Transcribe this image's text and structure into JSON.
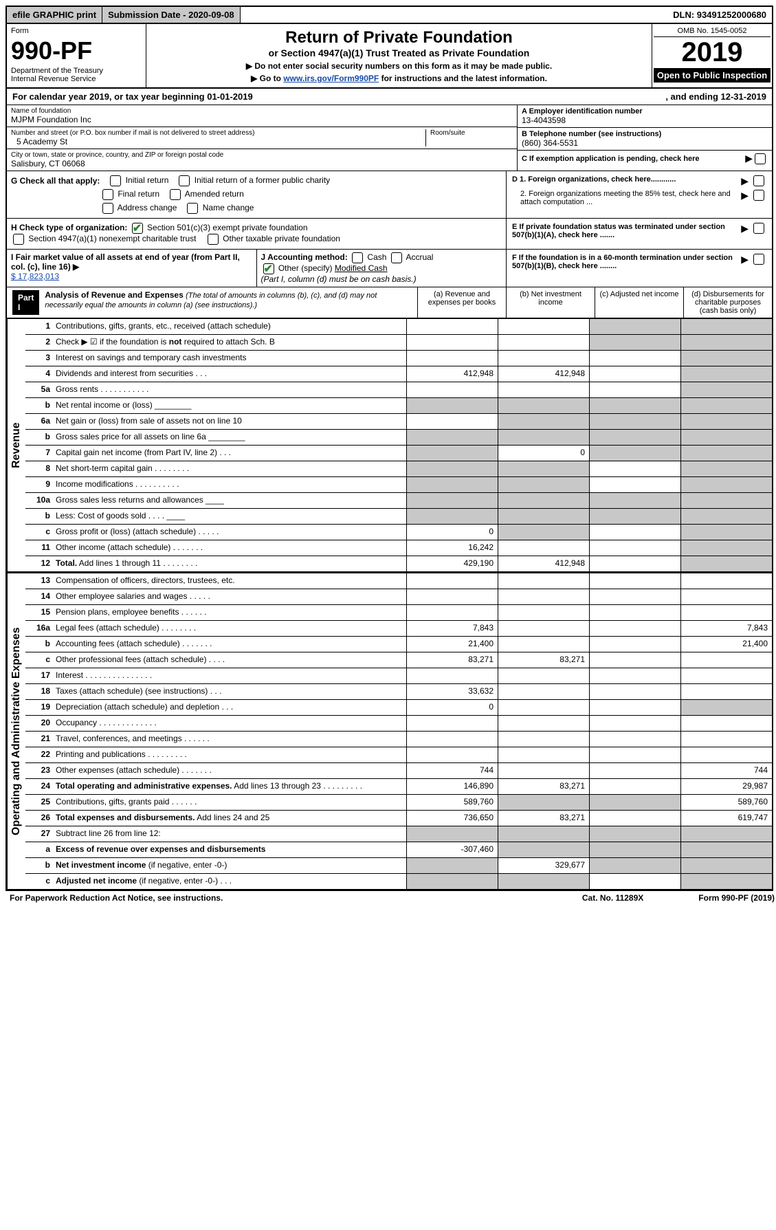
{
  "topbar": {
    "efile": "efile GRAPHIC print",
    "subdate_label": "Submission Date - 2020-09-08",
    "dln": "DLN: 93491252000680"
  },
  "header": {
    "form_word": "Form",
    "form_num": "990-PF",
    "dept": "Department of the Treasury",
    "irs": "Internal Revenue Service",
    "title1": "Return of Private Foundation",
    "title2": "or Section 4947(a)(1) Trust Treated as Private Foundation",
    "instr1": "▶ Do not enter social security numbers on this form as it may be made public.",
    "instr2_pre": "▶ Go to ",
    "instr2_link": "www.irs.gov/Form990PF",
    "instr2_post": " for instructions and the latest information.",
    "omb": "OMB No. 1545-0052",
    "year": "2019",
    "open": "Open to Public Inspection"
  },
  "calyear": {
    "left": "For calendar year 2019, or tax year beginning 01-01-2019",
    "right": ", and ending 12-31-2019"
  },
  "entity": {
    "name_label": "Name of foundation",
    "name": "MJPM Foundation Inc",
    "addr_label": "Number and street (or P.O. box number if mail is not delivered to street address)",
    "addr": "5 Academy St",
    "room_label": "Room/suite",
    "city_label": "City or town, state or province, country, and ZIP or foreign postal code",
    "city": "Salisbury, CT  06068",
    "a_label": "A Employer identification number",
    "ein": "13-4043598",
    "b_label": "B Telephone number (see instructions)",
    "phone": "(860) 364-5531",
    "c_label": "C If exemption application is pending, check here"
  },
  "boxes": {
    "g_label": "G Check all that apply:",
    "g1": "Initial return",
    "g2": "Initial return of a former public charity",
    "g3": "Final return",
    "g4": "Amended return",
    "g5": "Address change",
    "g6": "Name change",
    "h_label": "H Check type of organization:",
    "h1": "Section 501(c)(3) exempt private foundation",
    "h2": "Section 4947(a)(1) nonexempt charitable trust",
    "h3": "Other taxable private foundation",
    "d1": "D 1. Foreign organizations, check here............",
    "d2": "2. Foreign organizations meeting the 85% test, check here and attach computation ...",
    "e": "E  If private foundation status was terminated under section 507(b)(1)(A), check here .......",
    "f": "F  If the foundation is in a 60-month termination under section 507(b)(1)(B), check here ........",
    "i_label": "I Fair market value of all assets at end of year (from Part II, col. (c), line 16) ▶",
    "i_val": "$  17,823,013",
    "j_label": "J Accounting method:",
    "j_cash": "Cash",
    "j_accrual": "Accrual",
    "j_other": "Other (specify)",
    "j_other_val": "Modified Cash",
    "j_note": "(Part I, column (d) must be on cash basis.)"
  },
  "part1": {
    "hdr": "Part I",
    "title": "Analysis of Revenue and Expenses",
    "note": "(The total of amounts in columns (b), (c), and (d) may not necessarily equal the amounts in column (a) (see instructions).)",
    "col_a": "(a)    Revenue and expenses per books",
    "col_b": "(b)   Net investment income",
    "col_c": "(c)   Adjusted net income",
    "col_d": "(d)   Disbursements for charitable purposes (cash basis only)"
  },
  "side_rev": "Revenue",
  "side_exp": "Operating and Administrative Expenses",
  "rows": [
    {
      "n": "1",
      "label": "Contributions, gifts, grants, etc., received (attach schedule)",
      "a": "",
      "b": "",
      "c": "s",
      "d": "s"
    },
    {
      "n": "2",
      "label": "Check ▶ ☑ if the foundation is <b>not</b> required to attach Sch. B",
      "a": "",
      "b": "",
      "c": "s",
      "d": "s"
    },
    {
      "n": "3",
      "label": "Interest on savings and temporary cash investments",
      "a": "",
      "b": "",
      "c": "",
      "d": "s"
    },
    {
      "n": "4",
      "label": "Dividends and interest from securities   .   .   .",
      "a": "412,948",
      "b": "412,948",
      "c": "",
      "d": "s"
    },
    {
      "n": "5a",
      "label": "Gross rents    .   .   .   .   .   .   .   .   .   .   .",
      "a": "",
      "b": "",
      "c": "",
      "d": "s"
    },
    {
      "n": "b",
      "label": "Net rental income or (loss)  ________",
      "a": "s",
      "b": "s",
      "c": "s",
      "d": "s"
    },
    {
      "n": "6a",
      "label": "Net gain or (loss) from sale of assets not on line 10",
      "a": "",
      "b": "s",
      "c": "s",
      "d": "s"
    },
    {
      "n": "b",
      "label": "Gross sales price for all assets on line 6a ________",
      "a": "s",
      "b": "s",
      "c": "s",
      "d": "s"
    },
    {
      "n": "7",
      "label": "Capital gain net income (from Part IV, line 2)   .   .   .",
      "a": "s",
      "b": "0",
      "c": "s",
      "d": "s"
    },
    {
      "n": "8",
      "label": "Net short-term capital gain  .   .   .   .   .   .   .   .",
      "a": "s",
      "b": "s",
      "c": "",
      "d": "s"
    },
    {
      "n": "9",
      "label": "Income modifications   .   .   .   .   .   .   .   .   .   .",
      "a": "s",
      "b": "s",
      "c": "",
      "d": "s"
    },
    {
      "n": "10a",
      "label": "Gross sales less returns and allowances  ____",
      "a": "s",
      "b": "s",
      "c": "s",
      "d": "s"
    },
    {
      "n": "b",
      "label": "Less: Cost of goods sold    .   .   .   .   ____",
      "a": "s",
      "b": "s",
      "c": "s",
      "d": "s"
    },
    {
      "n": "c",
      "label": "Gross profit or (loss) (attach schedule)   .   .   .   .   .",
      "a": "0",
      "b": "s",
      "c": "",
      "d": "s"
    },
    {
      "n": "11",
      "label": "Other income (attach schedule)   .   .   .   .   .   .   .",
      "a": "16,242",
      "b": "",
      "c": "",
      "d": "s"
    },
    {
      "n": "12",
      "label": "<b>Total.</b> Add lines 1 through 11   .   .   .   .   .   .   .   .",
      "a": "429,190",
      "b": "412,948",
      "c": "",
      "d": "s"
    }
  ],
  "exp_rows": [
    {
      "n": "13",
      "label": "Compensation of officers, directors, trustees, etc.",
      "a": "",
      "b": "",
      "c": "",
      "d": ""
    },
    {
      "n": "14",
      "label": "Other employee salaries and wages   .   .   .   .   .",
      "a": "",
      "b": "",
      "c": "",
      "d": ""
    },
    {
      "n": "15",
      "label": "Pension plans, employee benefits   .   .   .   .   .   .",
      "a": "",
      "b": "",
      "c": "",
      "d": ""
    },
    {
      "n": "16a",
      "label": "Legal fees (attach schedule)   .   .   .   .   .   .   .   .",
      "a": "7,843",
      "b": "",
      "c": "",
      "d": "7,843"
    },
    {
      "n": "b",
      "label": "Accounting fees (attach schedule)   .   .   .   .   .   .   .",
      "a": "21,400",
      "b": "",
      "c": "",
      "d": "21,400"
    },
    {
      "n": "c",
      "label": "Other professional fees (attach schedule)   .   .   .   .",
      "a": "83,271",
      "b": "83,271",
      "c": "",
      "d": ""
    },
    {
      "n": "17",
      "label": "Interest   .   .   .   .   .   .   .   .   .   .   .   .   .   .   .",
      "a": "",
      "b": "",
      "c": "",
      "d": ""
    },
    {
      "n": "18",
      "label": "Taxes (attach schedule) (see instructions)   .   .   .",
      "a": "33,632",
      "b": "",
      "c": "",
      "d": ""
    },
    {
      "n": "19",
      "label": "Depreciation (attach schedule) and depletion   .   .   .",
      "a": "0",
      "b": "",
      "c": "",
      "d": "s"
    },
    {
      "n": "20",
      "label": "Occupancy   .   .   .   .   .   .   .   .   .   .   .   .   .",
      "a": "",
      "b": "",
      "c": "",
      "d": ""
    },
    {
      "n": "21",
      "label": "Travel, conferences, and meetings   .   .   .   .   .   .",
      "a": "",
      "b": "",
      "c": "",
      "d": ""
    },
    {
      "n": "22",
      "label": "Printing and publications   .   .   .   .   .   .   .   .   .",
      "a": "",
      "b": "",
      "c": "",
      "d": ""
    },
    {
      "n": "23",
      "label": "Other expenses (attach schedule)   .   .   .   .   .   .   .",
      "a": "744",
      "b": "",
      "c": "",
      "d": "744"
    },
    {
      "n": "24",
      "label": "<b>Total operating and administrative expenses.</b> Add lines 13 through 23   .   .   .   .   .   .   .   .   .",
      "a": "146,890",
      "b": "83,271",
      "c": "",
      "d": "29,987"
    },
    {
      "n": "25",
      "label": "Contributions, gifts, grants paid   .   .   .   .   .   .",
      "a": "589,760",
      "b": "s",
      "c": "s",
      "d": "589,760"
    },
    {
      "n": "26",
      "label": "<b>Total expenses and disbursements.</b> Add lines 24 and 25",
      "a": "736,650",
      "b": "83,271",
      "c": "",
      "d": "619,747"
    },
    {
      "n": "27",
      "label": "Subtract line 26 from line 12:",
      "a": "s",
      "b": "s",
      "c": "s",
      "d": "s"
    },
    {
      "n": "a",
      "label": "<b>Excess of revenue over expenses and disbursements</b>",
      "a": "-307,460",
      "b": "s",
      "c": "s",
      "d": "s"
    },
    {
      "n": "b",
      "label": "<b>Net investment income</b> (if negative, enter -0-)",
      "a": "s",
      "b": "329,677",
      "c": "s",
      "d": "s"
    },
    {
      "n": "c",
      "label": "<b>Adjusted net income</b> (if negative, enter -0-)   .   .   .",
      "a": "s",
      "b": "s",
      "c": "",
      "d": "s"
    }
  ],
  "footer": {
    "left": "For Paperwork Reduction Act Notice, see instructions.",
    "mid": "Cat. No. 11289X",
    "right": "Form 990-PF (2019)"
  }
}
